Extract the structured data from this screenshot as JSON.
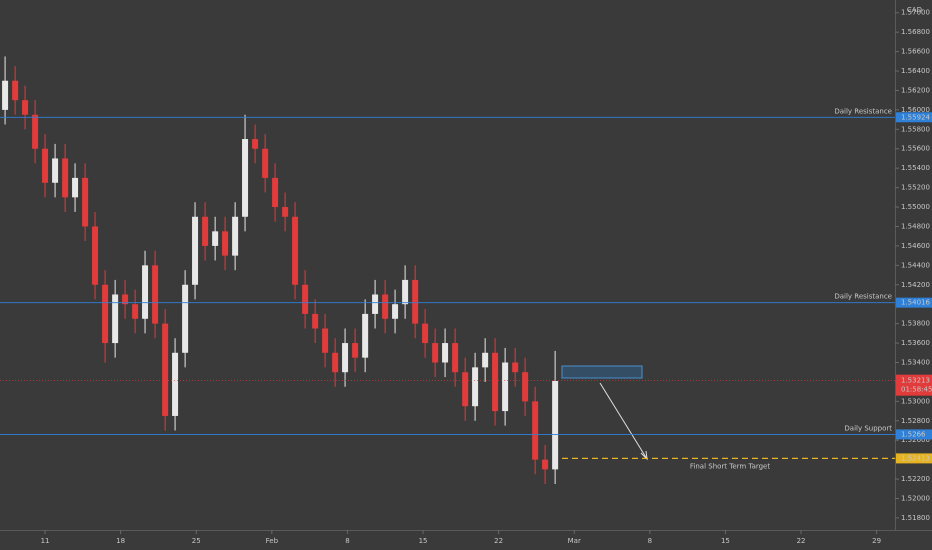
{
  "chart_data": {
    "type": "candlestick",
    "currency": "CAD",
    "xlim": [
      6.83,
      89.7
    ],
    "ylim": [
      1.51676,
      1.57131
    ],
    "xticks": [
      {
        "value": 11,
        "label": "11"
      },
      {
        "value": 18,
        "label": "18"
      },
      {
        "value": 25,
        "label": "25"
      },
      {
        "value": 32,
        "label": "Feb"
      },
      {
        "value": 39,
        "label": "8"
      },
      {
        "value": 46,
        "label": "15"
      },
      {
        "value": 53,
        "label": "22"
      },
      {
        "value": 60,
        "label": "Mar"
      },
      {
        "value": 67,
        "label": "8"
      },
      {
        "value": 74,
        "label": "15"
      },
      {
        "value": 81,
        "label": "22"
      },
      {
        "value": 88,
        "label": "29"
      }
    ],
    "yticks": [
      {
        "value": 1.518,
        "label": "1.51800"
      },
      {
        "value": 1.52,
        "label": "1.52000"
      },
      {
        "value": 1.522,
        "label": "1.52200"
      },
      {
        "value": 1.524,
        "label": "1.52400"
      },
      {
        "value": 1.526,
        "label": "1.52600"
      },
      {
        "value": 1.528,
        "label": "1.52800"
      },
      {
        "value": 1.53,
        "label": "1.53000"
      },
      {
        "value": 1.532,
        "label": "1.53200"
      },
      {
        "value": 1.534,
        "label": "1.53400"
      },
      {
        "value": 1.536,
        "label": "1.53600"
      },
      {
        "value": 1.538,
        "label": "1.53800"
      },
      {
        "value": 1.54,
        "label": "1.54000"
      },
      {
        "value": 1.542,
        "label": "1.54200"
      },
      {
        "value": 1.544,
        "label": "1.54400"
      },
      {
        "value": 1.546,
        "label": "1.54600"
      },
      {
        "value": 1.548,
        "label": "1.54800"
      },
      {
        "value": 1.55,
        "label": "1.55000"
      },
      {
        "value": 1.552,
        "label": "1.55200"
      },
      {
        "value": 1.554,
        "label": "1.55400"
      },
      {
        "value": 1.556,
        "label": "1.55600"
      },
      {
        "value": 1.558,
        "label": "1.55800"
      },
      {
        "value": 1.56,
        "label": "1.56000"
      },
      {
        "value": 1.562,
        "label": "1.56200"
      },
      {
        "value": 1.564,
        "label": "1.56400"
      },
      {
        "value": 1.566,
        "label": "1.56600"
      },
      {
        "value": 1.568,
        "label": "1.56800"
      },
      {
        "value": 1.57,
        "label": "1.57000"
      }
    ],
    "up_color": "#e8e8e8",
    "down_color": "#e23b3b",
    "x": [
      7.3,
      8.23,
      9.15,
      10.08,
      11.0,
      11.93,
      12.86,
      13.78,
      14.71,
      15.63,
      16.56,
      17.49,
      18.41,
      19.34,
      20.26,
      21.19,
      22.12,
      23.04,
      23.97,
      24.89,
      25.82,
      26.75,
      27.67,
      28.6,
      29.52,
      30.45,
      31.38,
      32.3,
      33.23,
      34.15,
      35.08,
      36.01,
      36.93,
      37.86,
      38.78,
      39.71,
      40.64,
      41.56,
      42.49,
      43.41,
      44.34,
      45.27,
      46.19,
      47.12,
      48.04,
      48.97,
      49.9,
      50.82,
      51.75,
      52.67,
      53.6,
      54.53,
      55.45,
      56.38,
      57.3,
      58.23
    ],
    "open": [
      1.56,
      1.563,
      1.561,
      1.5595,
      1.556,
      1.5525,
      1.555,
      1.551,
      1.553,
      1.548,
      1.542,
      1.536,
      1.541,
      1.54,
      1.5385,
      1.544,
      1.538,
      1.5285,
      1.535,
      1.542,
      1.549,
      1.546,
      1.5475,
      1.545,
      1.549,
      1.557,
      1.556,
      1.553,
      1.55,
      1.549,
      1.542,
      1.539,
      1.5375,
      1.535,
      1.533,
      1.536,
      1.5345,
      1.539,
      1.541,
      1.5385,
      1.54,
      1.5425,
      1.538,
      1.536,
      1.534,
      1.536,
      1.533,
      1.5295,
      1.5335,
      1.535,
      1.529,
      1.534,
      1.533,
      1.53,
      1.524,
      1.523
    ],
    "high": [
      1.5655,
      1.5645,
      1.5625,
      1.561,
      1.5575,
      1.5565,
      1.5565,
      1.5545,
      1.5545,
      1.5495,
      1.5435,
      1.5425,
      1.5425,
      1.5415,
      1.5455,
      1.5455,
      1.5395,
      1.5365,
      1.5435,
      1.5505,
      1.5505,
      1.549,
      1.549,
      1.5505,
      1.5595,
      1.5585,
      1.5575,
      1.5545,
      1.5515,
      1.5505,
      1.5435,
      1.5405,
      1.539,
      1.5365,
      1.5375,
      1.5375,
      1.5405,
      1.5425,
      1.5425,
      1.5415,
      1.544,
      1.544,
      1.5395,
      1.5375,
      1.5375,
      1.5375,
      1.5345,
      1.535,
      1.5365,
      1.5365,
      1.5355,
      1.5355,
      1.5345,
      1.5315,
      1.5255,
      1.5352
    ],
    "low": [
      1.5585,
      1.5595,
      1.558,
      1.5545,
      1.551,
      1.551,
      1.5495,
      1.5495,
      1.5465,
      1.5405,
      1.534,
      1.5345,
      1.5385,
      1.537,
      1.537,
      1.5365,
      1.527,
      1.527,
      1.5335,
      1.5405,
      1.5445,
      1.5445,
      1.5435,
      1.5435,
      1.5475,
      1.5545,
      1.5515,
      1.5485,
      1.5475,
      1.5405,
      1.5375,
      1.536,
      1.5335,
      1.5315,
      1.5315,
      1.533,
      1.533,
      1.5375,
      1.537,
      1.537,
      1.5385,
      1.5365,
      1.5345,
      1.5325,
      1.5325,
      1.5315,
      1.528,
      1.528,
      1.532,
      1.5275,
      1.5275,
      1.5315,
      1.5285,
      1.5225,
      1.5215,
      1.5215
    ],
    "close": [
      1.563,
      1.561,
      1.5595,
      1.556,
      1.5525,
      1.555,
      1.551,
      1.553,
      1.548,
      1.542,
      1.536,
      1.541,
      1.54,
      1.5385,
      1.544,
      1.538,
      1.5285,
      1.535,
      1.542,
      1.549,
      1.546,
      1.5475,
      1.545,
      1.549,
      1.557,
      1.556,
      1.553,
      1.55,
      1.549,
      1.542,
      1.539,
      1.5375,
      1.535,
      1.533,
      1.536,
      1.5345,
      1.539,
      1.541,
      1.5385,
      1.54,
      1.5425,
      1.538,
      1.536,
      1.534,
      1.536,
      1.533,
      1.5295,
      1.5335,
      1.535,
      1.529,
      1.534,
      1.533,
      1.53,
      1.524,
      1.523,
      1.5321
    ],
    "levels": [
      {
        "name": "Daily Resistance",
        "value": 1.55924,
        "color": "#2f80d8",
        "style": "solid"
      },
      {
        "name": "Daily Resistance",
        "value": 1.54016,
        "color": "#2f80d8",
        "style": "solid"
      },
      {
        "name": "Daily Support",
        "value": 1.5266,
        "color": "#2f80d8",
        "style": "solid"
      },
      {
        "name": "Final Short Term Target",
        "value": 1.52413,
        "color": "#e6b422",
        "style": "dashed"
      }
    ],
    "last_price": {
      "value": 1.53213,
      "countdown": "01:58:45",
      "color": "#e23b3b"
    }
  }
}
